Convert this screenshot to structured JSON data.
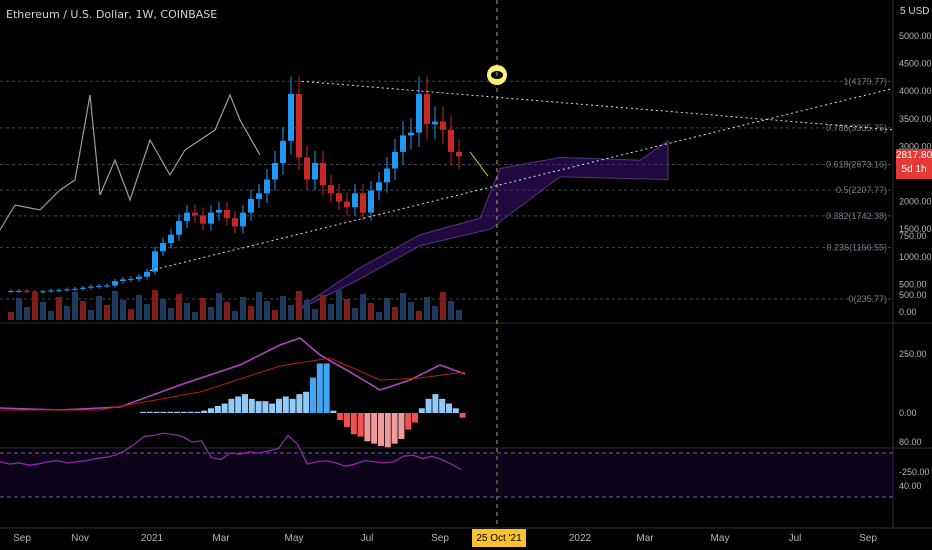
{
  "header": {
    "title": "Ethereum / U.S. Dollar, 1W, COINBASE",
    "scale_count": "5",
    "currency": "USD"
  },
  "current_price": {
    "value": "2817.80",
    "countdown": "5d 1h"
  },
  "crosshair_date": "25 Oct '21",
  "colors": {
    "up": "#2196f3",
    "down": "#c62828",
    "cloud": "#4a148c",
    "macd_line": "#ab47bc",
    "signal_line": "#b71c1c",
    "rsi_line": "#9c27b0",
    "trend_line": "#e0e0e0",
    "crosshair": "#fff176",
    "overlay_line": "#9e9e9e",
    "label_box": "#e53935"
  },
  "chart_data": [
    {
      "type": "candlestick",
      "title": "Ethereum / U.S. Dollar, 1W, COINBASE",
      "y_axis_ticks": [
        0,
        500,
        1000,
        1500,
        2000,
        2500,
        3000,
        3500,
        4000,
        4500,
        5000
      ],
      "y_tick_labels": [
        "0.00",
        "500.00",
        "1000.00",
        "1500.00",
        "2000.00",
        "2500.00",
        "3000.00",
        "3500.00",
        "4000.00",
        "4500.00",
        "5000.00"
      ],
      "x_tick_labels": [
        "Sep",
        "Nov",
        "2021",
        "Mar",
        "May",
        "Jul",
        "Sep",
        "2022",
        "Mar",
        "May",
        "Jul",
        "Sep"
      ],
      "fib_levels": [
        {
          "label": "1(4179.77)",
          "value": 4179.77
        },
        {
          "label": "0.786(3335.75)",
          "value": 3335.75
        },
        {
          "label": "0.618(2673.16)",
          "value": 2673.16
        },
        {
          "label": "0.5(2207.77)",
          "value": 2207.77
        },
        {
          "label": "0.382(1742.38)",
          "value": 1742.38
        },
        {
          "label": "0.236(1166.55)",
          "value": 1166.55
        },
        {
          "label": "0(235.77)",
          "value": 235.77
        }
      ],
      "weekly_closes": [
        380,
        385,
        370,
        360,
        375,
        390,
        395,
        410,
        420,
        440,
        460,
        470,
        480,
        560,
        590,
        600,
        640,
        730,
        1100,
        1250,
        1400,
        1650,
        1800,
        1750,
        1600,
        1800,
        1850,
        1700,
        1550,
        1800,
        2050,
        2150,
        2400,
        2700,
        3100,
        3950,
        2800,
        2400,
        2700,
        2300,
        2150,
        2000,
        1900,
        2150,
        1800,
        2200,
        2350,
        2600,
        2900,
        3200,
        3250,
        3950,
        3400,
        3450,
        3300,
        2900,
        2817.8
      ]
    },
    {
      "type": "line",
      "title": "",
      "y_tick_labels": [
        "750.00",
        "500.00",
        "250.00",
        "0.00",
        "-250.00"
      ],
      "y_ticks": [
        750,
        500,
        250,
        0,
        -250
      ],
      "histogram": [
        5,
        5,
        5,
        5,
        5,
        5,
        5,
        5,
        5,
        10,
        20,
        30,
        40,
        60,
        70,
        80,
        60,
        50,
        50,
        40,
        60,
        70,
        60,
        80,
        90,
        150,
        210,
        210,
        10,
        -30,
        -60,
        -90,
        -100,
        -120,
        -130,
        -140,
        -145,
        -130,
        -110,
        -70,
        -40,
        20,
        60,
        80,
        60,
        40,
        20,
        -20
      ],
      "series": []
    },
    {
      "type": "line",
      "title": "",
      "y_tick_labels": [
        "80.00",
        "40.00"
      ],
      "y_ticks": [
        80,
        40
      ],
      "band": [
        70,
        30
      ],
      "values": [
        62,
        60,
        61,
        59,
        60,
        62,
        63,
        61,
        62,
        63,
        65,
        66,
        68,
        72,
        78,
        85,
        86,
        88,
        87,
        85,
        80,
        81,
        66,
        64,
        70,
        69,
        71,
        70,
        72,
        74,
        86,
        78,
        60,
        62,
        63,
        61,
        58,
        60,
        63,
        62,
        61,
        62,
        67,
        68,
        65,
        67,
        64,
        60,
        55
      ]
    }
  ]
}
